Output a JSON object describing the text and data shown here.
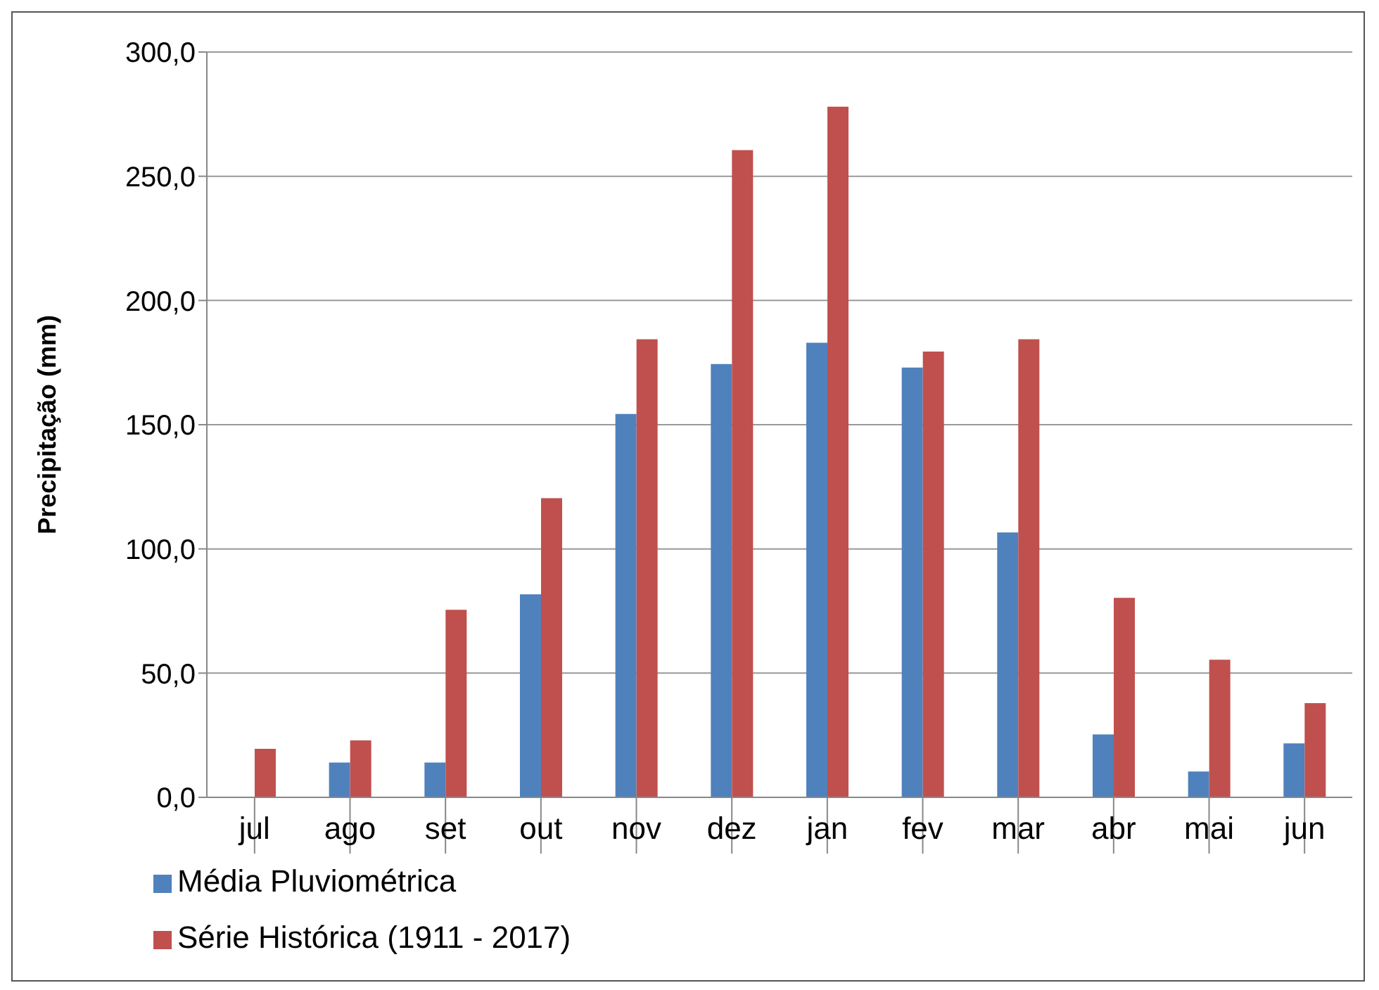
{
  "chart_data": {
    "type": "bar",
    "ylabel": "Precipitação  (mm)",
    "categories": [
      "jul",
      "ago",
      "set",
      "out",
      "nov",
      "dez",
      "jan",
      "fev",
      "mar",
      "abr",
      "mai",
      "jun"
    ],
    "series": [
      {
        "name": "Média Pluviométrica",
        "color": "#4f81bd",
        "values": [
          0,
          14,
          14,
          81.7,
          154.3,
          174.4,
          183,
          173,
          106.6,
          25.3,
          10.4,
          21.7
        ]
      },
      {
        "name": "Série Histórica (1911 - 2017)",
        "color": "#c0504d",
        "values": [
          19.5,
          22.9,
          75.5,
          120.4,
          184.4,
          260.5,
          278,
          179.4,
          184.4,
          80.3,
          55.4,
          37.9
        ]
      }
    ],
    "ylim": [
      0,
      300
    ],
    "yticks": [
      {
        "value": 0,
        "label": "0,0"
      },
      {
        "value": 50,
        "label": "50,0"
      },
      {
        "value": 100,
        "label": "100,0"
      },
      {
        "value": 150,
        "label": "150,0"
      },
      {
        "value": 200,
        "label": "200,0"
      },
      {
        "value": 250,
        "label": "250,0"
      },
      {
        "value": 300,
        "label": "300,0"
      }
    ],
    "grid": "y",
    "legend": "bottom left"
  }
}
